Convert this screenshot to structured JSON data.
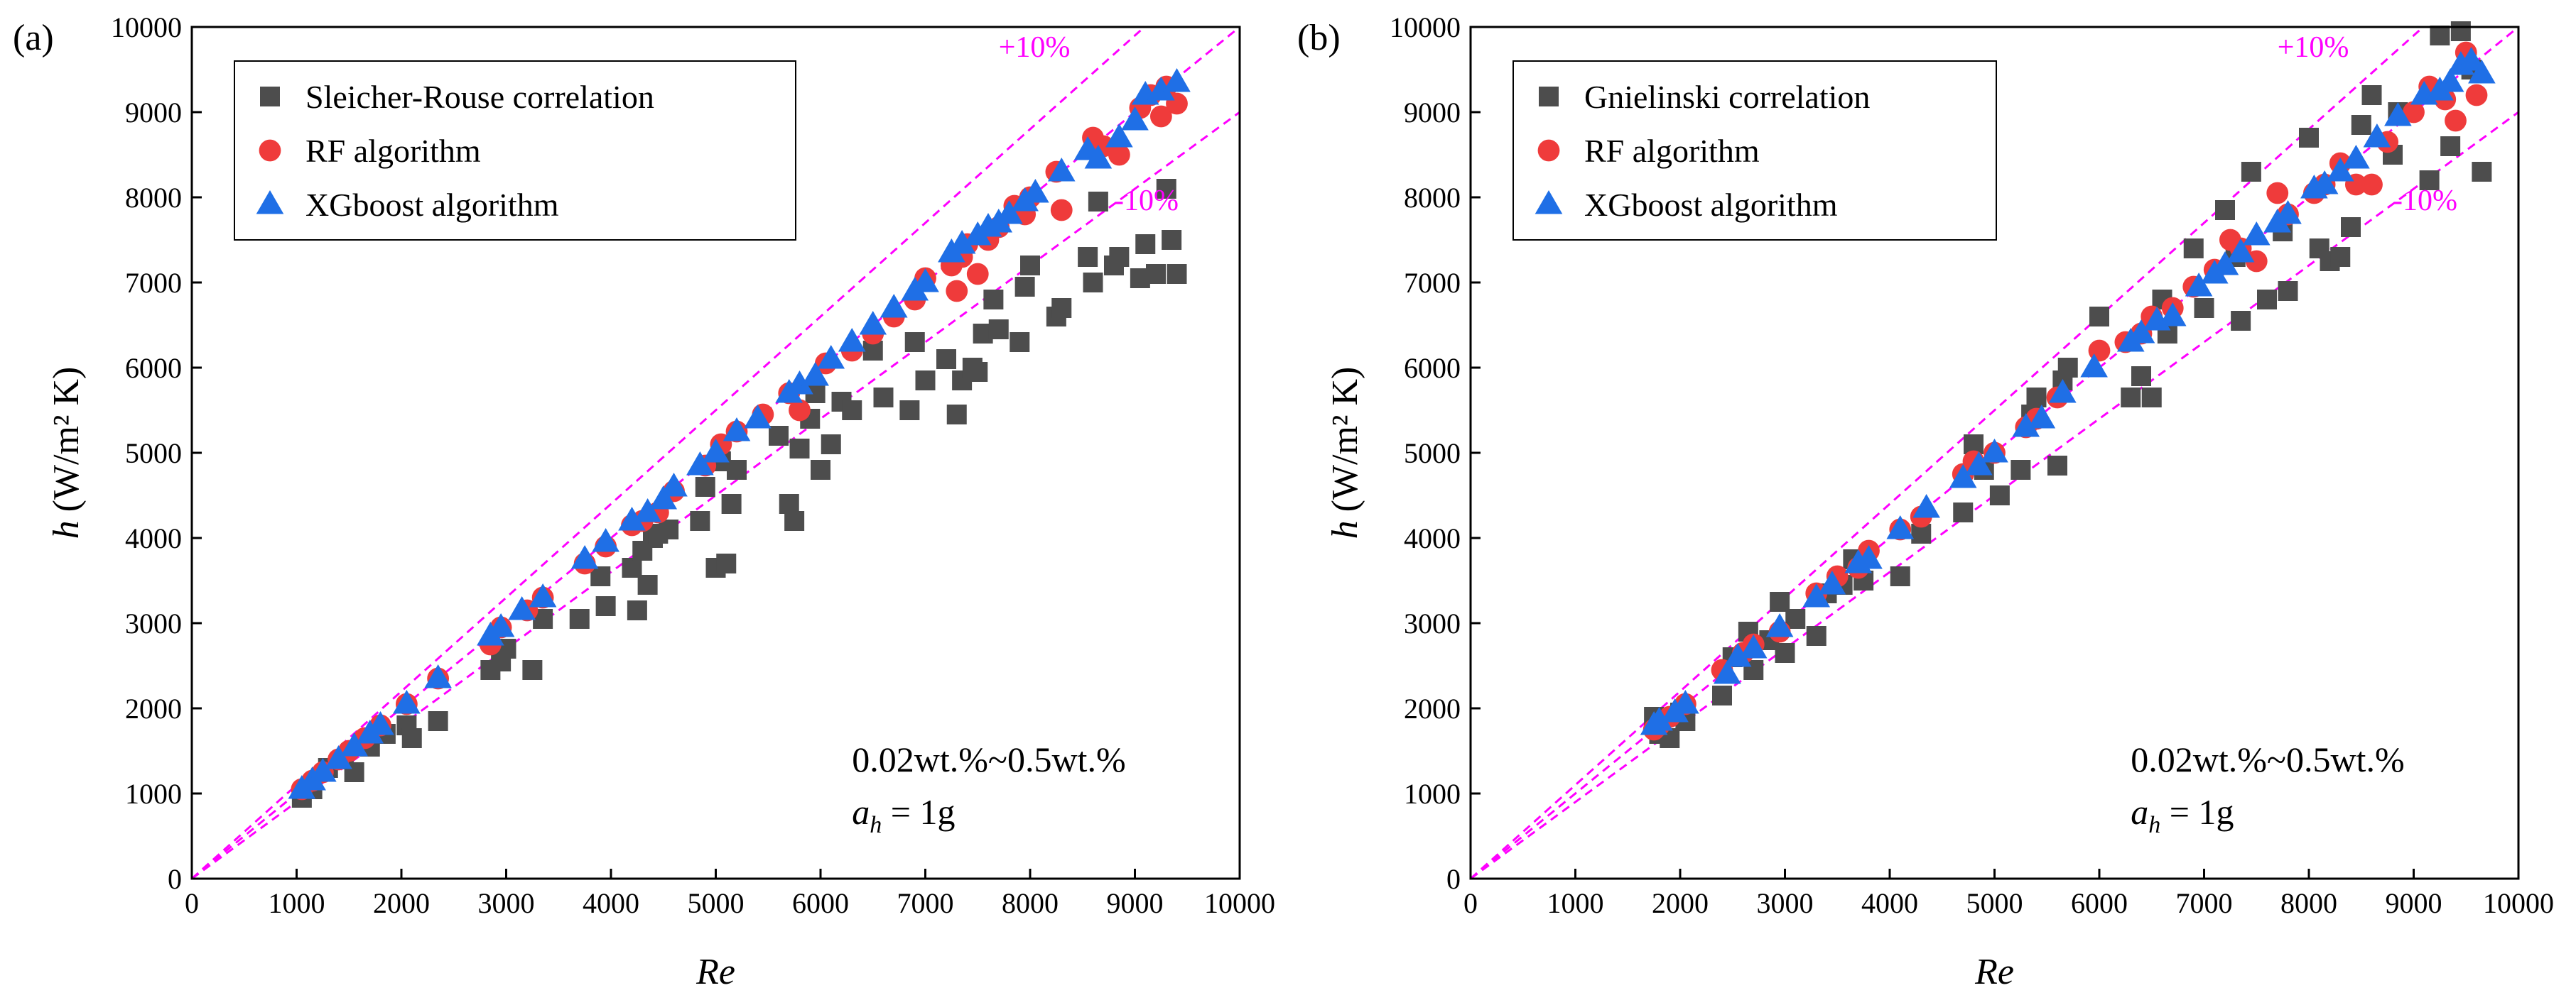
{
  "figure": {
    "caption_a": "(a)",
    "caption_b": "(b)"
  },
  "colors": {
    "correlation": "#4d4d4d",
    "rf": "#ef3b3b",
    "xgb": "#1f6fe6",
    "band": "#ff00ff"
  },
  "chart_data": [
    {
      "type": "scatter",
      "panel_label": "(a)",
      "xlabel": "Re",
      "ylabel_prefix": "h",
      "ylabel_unit": "(W/m² K)",
      "xlim": [
        0,
        10000
      ],
      "ylim": [
        0,
        10000
      ],
      "xticks": [
        0,
        1000,
        2000,
        3000,
        4000,
        5000,
        6000,
        7000,
        8000,
        9000,
        10000
      ],
      "yticks": [
        0,
        1000,
        2000,
        3000,
        4000,
        5000,
        6000,
        7000,
        8000,
        9000,
        10000
      ],
      "annotation_line1": "0.02wt.%~0.5wt.%",
      "annotation_sym": "a",
      "annotation_sub": "h",
      "annotation_rest": " = 1g",
      "bands": {
        "upper_label": "+10%",
        "lower_label": "-10%"
      },
      "series": [
        {
          "name": "Sleicher-Rouse correlation",
          "marker": "square",
          "x": [
            1050,
            1150,
            1300,
            1450,
            1550,
            1700,
            1850,
            2050,
            2100,
            2350,
            2850,
            2950,
            3000,
            3250,
            3350,
            3700,
            3900,
            3950,
            4200,
            4250,
            4300,
            4350,
            4400,
            4450,
            4550,
            4850,
            4900,
            5000,
            5050,
            5100,
            5150,
            5200,
            5600,
            5700,
            5750,
            5800,
            5900,
            5950,
            6000,
            6100,
            6200,
            6300,
            6500,
            6600,
            6850,
            6900,
            7000,
            7200,
            7300,
            7350,
            7450,
            7500,
            7550,
            7650,
            7700,
            7900,
            7950,
            8000,
            8250,
            8300,
            8550,
            8600,
            8650,
            8800,
            8850,
            9050,
            9100,
            9200,
            9300,
            9350,
            9400
          ],
          "y": [
            950,
            1050,
            1300,
            1400,
            1250,
            1550,
            1700,
            1800,
            1650,
            1850,
            2450,
            2550,
            2700,
            2450,
            3050,
            3050,
            3550,
            3200,
            3650,
            3150,
            3850,
            3450,
            4000,
            4050,
            4100,
            4200,
            4600,
            3650,
            4900,
            3700,
            4400,
            4800,
            5200,
            4400,
            4200,
            5050,
            5400,
            5700,
            4800,
            5100,
            5600,
            5500,
            6200,
            5650,
            5500,
            6300,
            5850,
            6100,
            5450,
            5850,
            6000,
            5950,
            6400,
            6800,
            6450,
            6300,
            6950,
            7200,
            6600,
            6700,
            7300,
            7000,
            7950,
            7200,
            7300,
            7050,
            7450,
            7100,
            8100,
            7500,
            7100
          ]
        },
        {
          "name": "RF algorithm",
          "marker": "circle",
          "x": [
            1050,
            1150,
            1250,
            1400,
            1500,
            1650,
            1800,
            2050,
            2350,
            2850,
            2950,
            3200,
            3350,
            3750,
            3950,
            4200,
            4300,
            4450,
            4600,
            4900,
            5050,
            5200,
            5450,
            5700,
            5800,
            6050,
            6300,
            6500,
            6700,
            6900,
            7000,
            7250,
            7300,
            7350,
            7400,
            7500,
            7600,
            7700,
            7850,
            7950,
            8000,
            8250,
            8300,
            8600,
            8700,
            8850,
            9050,
            9150,
            9250,
            9300,
            9400
          ],
          "y": [
            1050,
            1150,
            1250,
            1400,
            1500,
            1650,
            1800,
            2050,
            2350,
            2750,
            2950,
            3150,
            3300,
            3700,
            3900,
            4150,
            4200,
            4300,
            4550,
            4850,
            5100,
            5250,
            5450,
            5700,
            5500,
            6050,
            6200,
            6400,
            6600,
            6800,
            7050,
            7200,
            6900,
            7300,
            7450,
            7100,
            7500,
            7650,
            7900,
            7800,
            8000,
            8300,
            7850,
            8700,
            8600,
            8500,
            9050,
            9200,
            8950,
            9300,
            9100
          ]
        },
        {
          "name": "XGboost algorithm",
          "marker": "triangle",
          "x": [
            1050,
            1150,
            1250,
            1400,
            1550,
            1700,
            1800,
            2050,
            2350,
            2850,
            2950,
            3150,
            3350,
            3750,
            3950,
            4200,
            4350,
            4500,
            4600,
            4850,
            5000,
            5200,
            5400,
            5700,
            5800,
            5950,
            6100,
            6300,
            6500,
            6700,
            6900,
            7000,
            7250,
            7350,
            7500,
            7600,
            7700,
            7800,
            7950,
            8050,
            8300,
            8550,
            8650,
            8850,
            9000,
            9100,
            9250,
            9400
          ],
          "y": [
            1050,
            1150,
            1250,
            1400,
            1550,
            1700,
            1800,
            2050,
            2350,
            2850,
            2950,
            3150,
            3300,
            3750,
            3950,
            4200,
            4300,
            4450,
            4600,
            4850,
            5000,
            5250,
            5400,
            5700,
            5800,
            5900,
            6100,
            6300,
            6500,
            6700,
            6900,
            7000,
            7350,
            7450,
            7550,
            7650,
            7700,
            7800,
            7950,
            8050,
            8300,
            8550,
            8450,
            8700,
            8900,
            9200,
            9250,
            9350
          ]
        }
      ]
    },
    {
      "type": "scatter",
      "panel_label": "(b)",
      "xlabel": "Re",
      "ylabel_prefix": "h",
      "ylabel_unit": "(W/m² K)",
      "xlim": [
        0,
        10000
      ],
      "ylim": [
        0,
        10000
      ],
      "xticks": [
        0,
        1000,
        2000,
        3000,
        4000,
        5000,
        6000,
        7000,
        8000,
        9000,
        10000
      ],
      "yticks": [
        0,
        1000,
        2000,
        3000,
        4000,
        5000,
        6000,
        7000,
        8000,
        9000,
        10000
      ],
      "annotation_line1": "0.02wt.%~0.5wt.%",
      "annotation_sym": "a",
      "annotation_sub": "h",
      "annotation_rest": " = 1g",
      "bands": {
        "upper_label": "+10%",
        "lower_label": "-10%"
      },
      "series": [
        {
          "name": "Gnielinski correlation",
          "marker": "square",
          "x": [
            1750,
            1800,
            1900,
            2000,
            2050,
            2400,
            2500,
            2650,
            2700,
            2850,
            2950,
            3000,
            3100,
            3300,
            3400,
            3550,
            3650,
            3750,
            4100,
            4300,
            4700,
            4800,
            4900,
            5050,
            5250,
            5350,
            5400,
            5600,
            5650,
            5700,
            6000,
            6300,
            6400,
            6500,
            6600,
            6650,
            6900,
            7000,
            7200,
            7300,
            7350,
            7450,
            7600,
            7750,
            7800,
            8000,
            8100,
            8200,
            8300,
            8400,
            8500,
            8600,
            8800,
            8850,
            9150,
            9250,
            9350,
            9450,
            9550,
            9650
          ],
          "y": [
            1900,
            1700,
            1650,
            1950,
            1850,
            2150,
            2600,
            2900,
            2450,
            2800,
            3250,
            2650,
            3050,
            2850,
            3350,
            3450,
            3750,
            3500,
            3550,
            4050,
            4300,
            5100,
            4800,
            4500,
            4800,
            5450,
            5650,
            4850,
            5850,
            6000,
            6600,
            5650,
            5900,
            5650,
            6800,
            6400,
            7400,
            6700,
            7850,
            7300,
            6550,
            8300,
            6800,
            7600,
            6900,
            8700,
            7400,
            7250,
            7300,
            7650,
            8850,
            9200,
            8500,
            9000,
            8200,
            9900,
            8600,
            9950,
            9500,
            8300
          ]
        },
        {
          "name": "RF algorithm",
          "marker": "circle",
          "x": [
            1750,
            1800,
            1900,
            2050,
            2400,
            2600,
            2700,
            2950,
            3300,
            3500,
            3700,
            3800,
            4100,
            4300,
            4700,
            4800,
            5000,
            5300,
            5400,
            5600,
            6000,
            6250,
            6400,
            6500,
            6700,
            6900,
            7100,
            7250,
            7350,
            7500,
            7700,
            7800,
            8050,
            8150,
            8300,
            8450,
            8600,
            8750,
            9000,
            9150,
            9300,
            9400,
            9500,
            9600
          ],
          "y": [
            1750,
            1800,
            1900,
            2050,
            2450,
            2650,
            2750,
            2900,
            3350,
            3550,
            3650,
            3850,
            4100,
            4250,
            4750,
            4900,
            5000,
            5300,
            5400,
            5650,
            6200,
            6300,
            6400,
            6600,
            6700,
            6950,
            7150,
            7500,
            7400,
            7250,
            8050,
            7800,
            8050,
            8150,
            8400,
            8150,
            8150,
            8650,
            9000,
            9300,
            9150,
            8900,
            9700,
            9200
          ]
        },
        {
          "name": "XGboost algorithm",
          "marker": "triangle",
          "x": [
            1750,
            1800,
            1950,
            2050,
            2450,
            2550,
            2700,
            2950,
            3300,
            3450,
            3700,
            3800,
            4100,
            4350,
            4700,
            4850,
            5000,
            5300,
            5450,
            5650,
            5950,
            6300,
            6400,
            6550,
            6700,
            6950,
            7100,
            7200,
            7350,
            7500,
            7700,
            7800,
            8050,
            8150,
            8300,
            8450,
            8650,
            8850,
            9100,
            9250,
            9350,
            9450,
            9550,
            9650
          ],
          "y": [
            1800,
            1850,
            1950,
            2050,
            2400,
            2600,
            2700,
            2950,
            3300,
            3450,
            3700,
            3750,
            4100,
            4350,
            4700,
            4850,
            5000,
            5300,
            5400,
            5700,
            6000,
            6300,
            6400,
            6550,
            6600,
            6950,
            7100,
            7200,
            7350,
            7550,
            7700,
            7800,
            8100,
            8150,
            8300,
            8450,
            8700,
            8950,
            9200,
            9250,
            9350,
            9550,
            9600,
            9450
          ]
        }
      ]
    }
  ]
}
